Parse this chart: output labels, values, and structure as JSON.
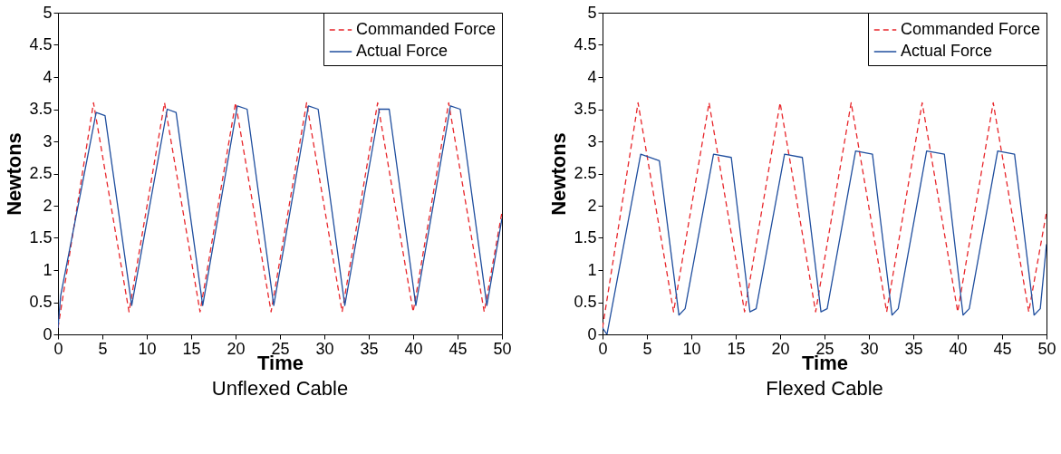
{
  "chart_data": [
    {
      "type": "line",
      "title": "Unflexed Cable",
      "xlabel": "Time",
      "ylabel": "Newtons",
      "xlim": [
        0,
        50
      ],
      "ylim": [
        0,
        5
      ],
      "xticks": [
        0,
        5,
        10,
        15,
        20,
        25,
        30,
        35,
        40,
        45,
        50
      ],
      "yticks": [
        0,
        0.5,
        1,
        1.5,
        2,
        2.5,
        3,
        3.5,
        4,
        4.5,
        5
      ],
      "grid": false,
      "legend": "top right",
      "series": [
        {
          "name": "Commanded Force",
          "color": "#e8262b",
          "line_style": "dashed",
          "x": [
            0,
            4,
            8,
            12,
            16,
            20,
            24,
            28,
            32,
            36,
            40,
            44,
            48,
            50
          ],
          "values": [
            0.1,
            3.6,
            0.35,
            3.6,
            0.35,
            3.6,
            0.35,
            3.6,
            0.35,
            3.6,
            0.35,
            3.6,
            0.35,
            1.9
          ]
        },
        {
          "name": "Actual Force",
          "color": "#1f4e9e",
          "line_style": "solid",
          "x": [
            0,
            0.3,
            4.3,
            5.3,
            8.3,
            12.3,
            13.3,
            16.3,
            20.2,
            21.3,
            24.3,
            28.2,
            29.3,
            32.3,
            36.2,
            37.3,
            40.3,
            44.2,
            45.3,
            48.3,
            50
          ],
          "values": [
            0.1,
            0.6,
            3.45,
            3.4,
            0.45,
            3.5,
            3.45,
            0.45,
            3.55,
            3.5,
            0.45,
            3.55,
            3.5,
            0.45,
            3.5,
            3.5,
            0.45,
            3.55,
            3.5,
            0.45,
            1.8
          ]
        }
      ]
    },
    {
      "type": "line",
      "title": "Flexed Cable",
      "xlabel": "Time",
      "ylabel": "Newtons",
      "xlim": [
        0,
        50
      ],
      "ylim": [
        0,
        5
      ],
      "xticks": [
        0,
        5,
        10,
        15,
        20,
        25,
        30,
        35,
        40,
        45,
        50
      ],
      "yticks": [
        0,
        0.5,
        1,
        1.5,
        2,
        2.5,
        3,
        3.5,
        4,
        4.5,
        5
      ],
      "grid": false,
      "legend": "top right",
      "series": [
        {
          "name": "Commanded Force",
          "color": "#e8262b",
          "line_style": "dashed",
          "x": [
            0,
            4,
            8,
            12,
            16,
            20,
            24,
            28,
            32,
            36,
            40,
            44,
            48,
            50
          ],
          "values": [
            0.1,
            3.6,
            0.35,
            3.6,
            0.35,
            3.6,
            0.35,
            3.6,
            0.35,
            3.6,
            0.35,
            3.6,
            0.35,
            1.9
          ]
        },
        {
          "name": "Actual Force",
          "color": "#1f4e9e",
          "line_style": "solid",
          "x": [
            0,
            0.5,
            4.3,
            6.4,
            8.6,
            9.3,
            12.5,
            14.5,
            16.6,
            17.3,
            20.5,
            22.5,
            24.6,
            25.3,
            28.5,
            30.4,
            32.6,
            33.3,
            36.5,
            38.5,
            40.6,
            41.3,
            44.5,
            46.4,
            48.6,
            49.3,
            50
          ],
          "values": [
            0.1,
            0,
            2.8,
            2.7,
            0.3,
            0.4,
            2.8,
            2.75,
            0.35,
            0.4,
            2.8,
            2.75,
            0.35,
            0.4,
            2.85,
            2.8,
            0.3,
            0.4,
            2.85,
            2.8,
            0.3,
            0.4,
            2.85,
            2.8,
            0.3,
            0.4,
            1.4
          ]
        }
      ]
    }
  ]
}
